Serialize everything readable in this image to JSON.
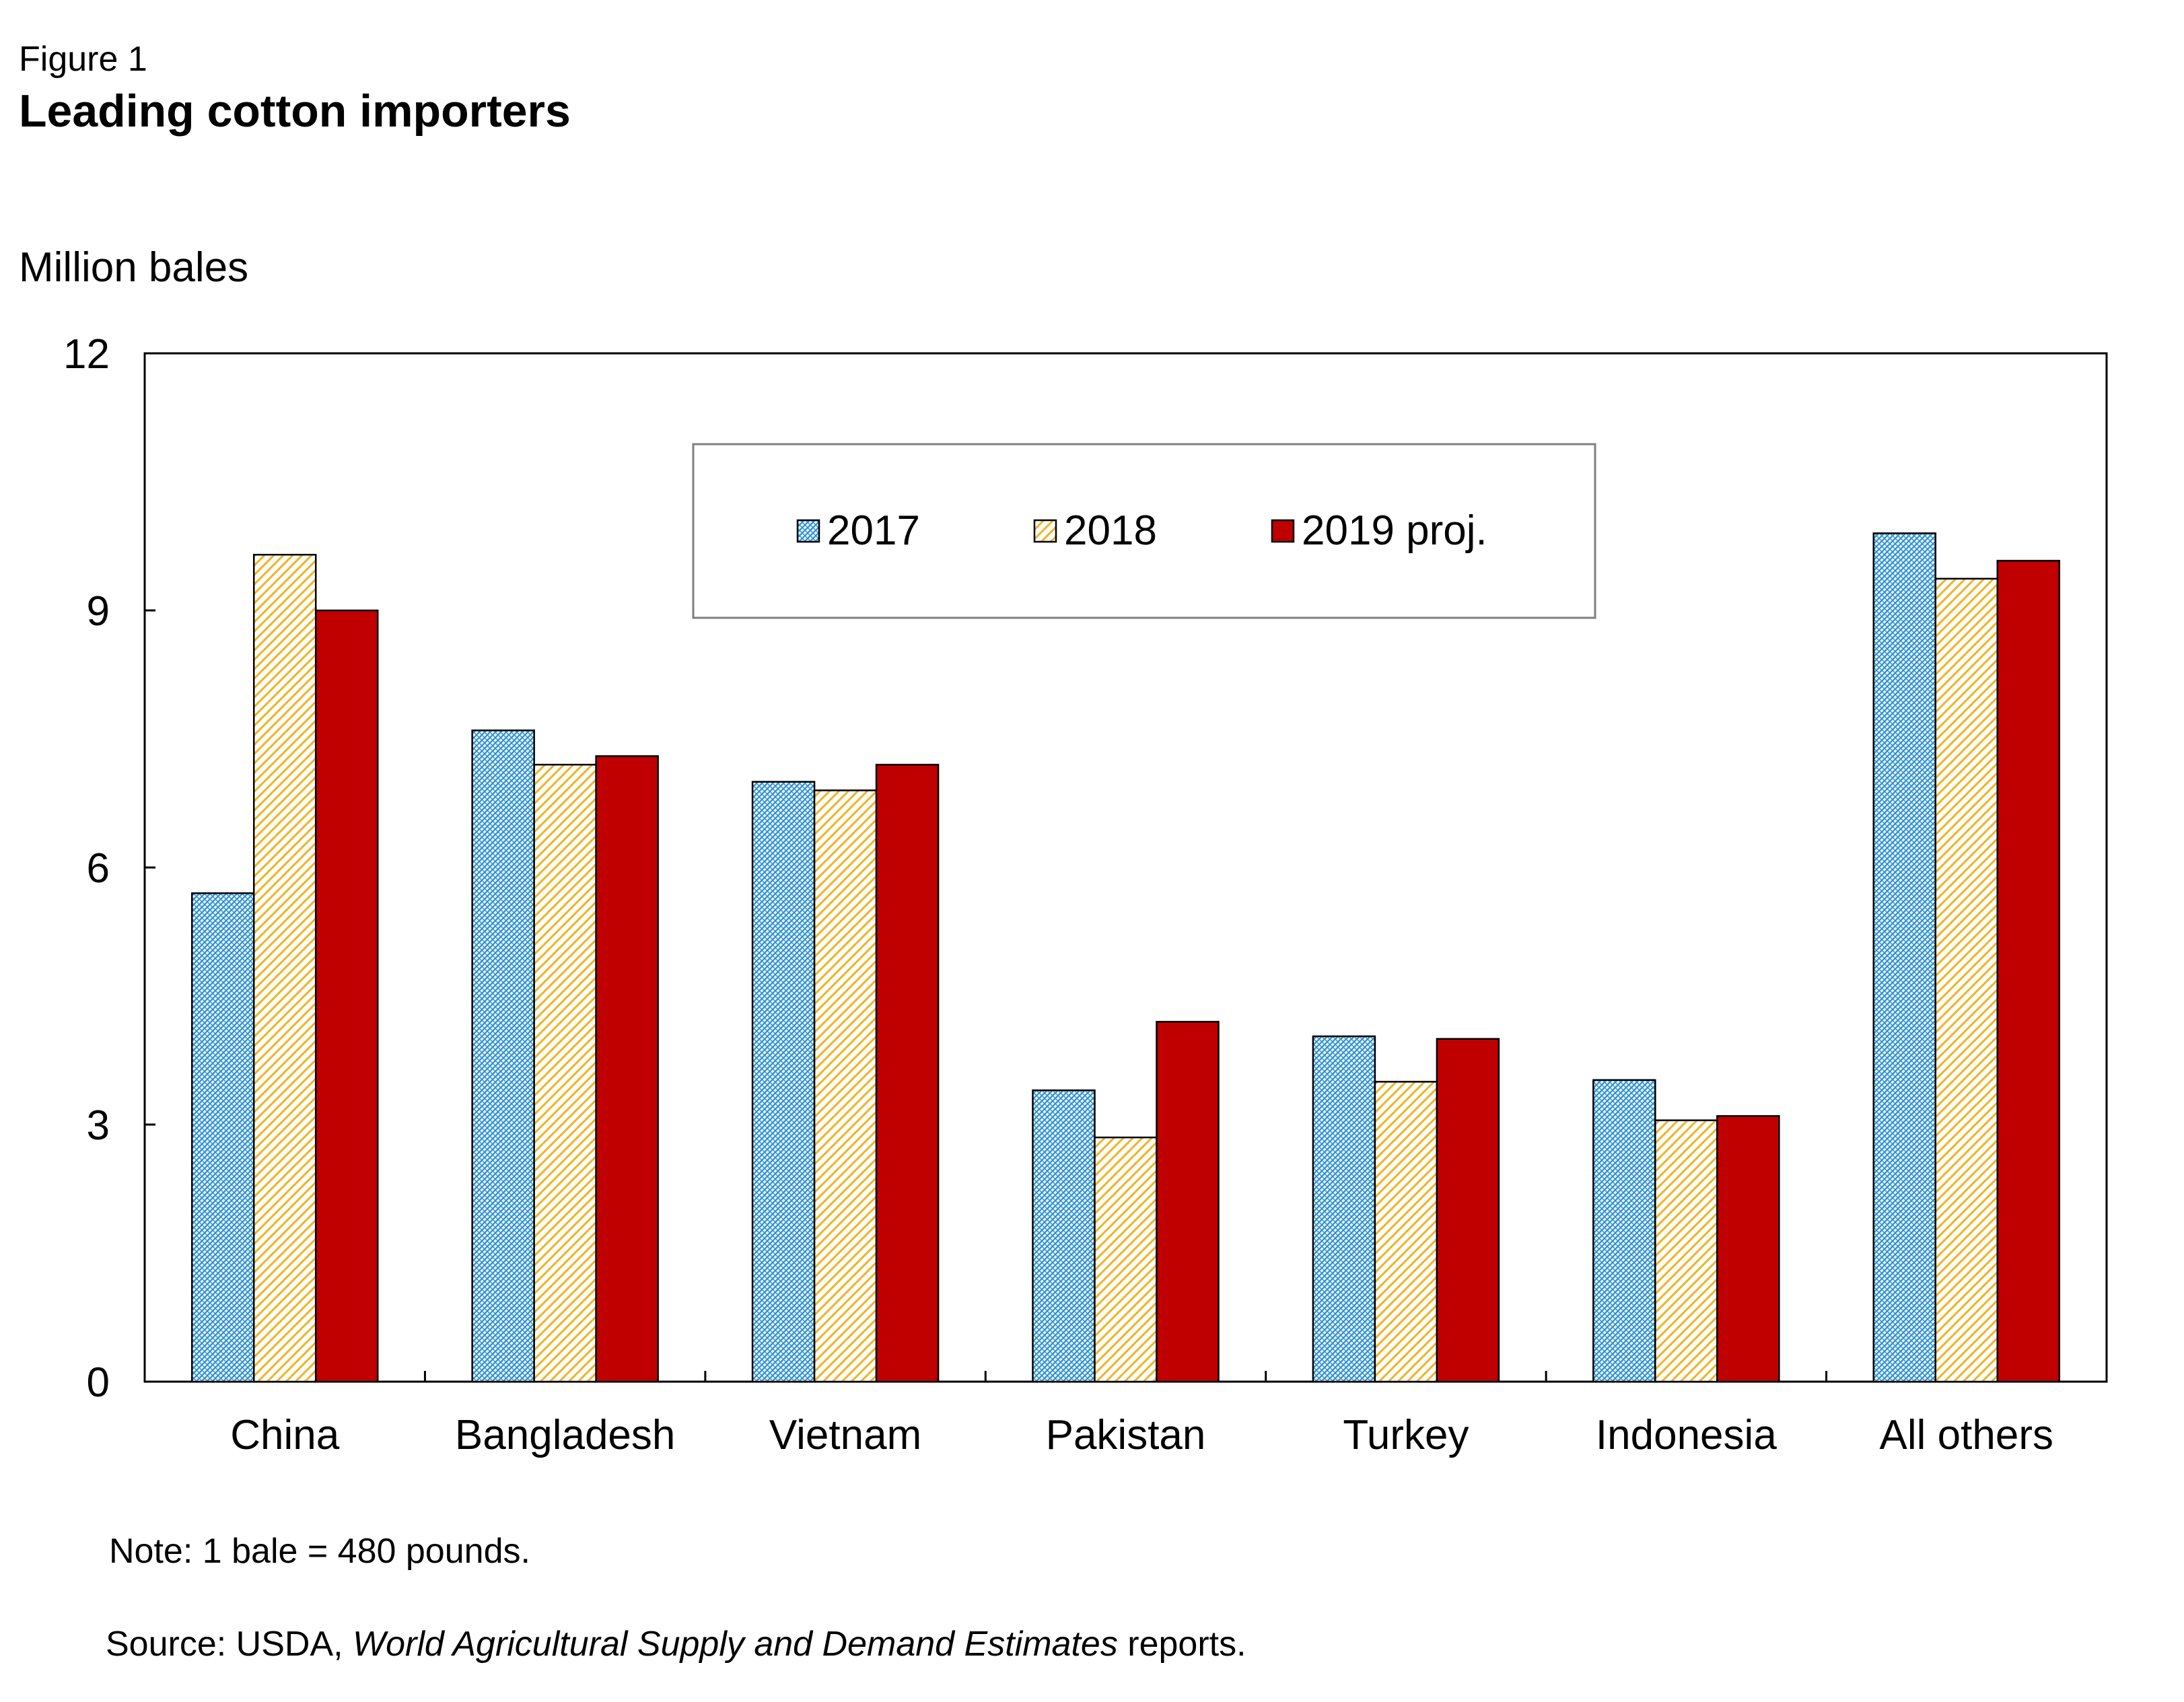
{
  "figure": {
    "label": "Figure 1",
    "title": "Leading cotton importers"
  },
  "note": "Note: 1 bale = 480 pounds.",
  "source": {
    "prefix": "Source:  USDA, ",
    "italic": "World Agricultural Supply and Demand Estimates",
    "suffix": " reports."
  },
  "colors": {
    "series_2017": "#2f8fd0",
    "series_2018": "#f0b323",
    "series_2019": "#c00000"
  },
  "chart_data": {
    "type": "bar",
    "title": "Leading cotton importers",
    "xlabel": "",
    "ylabel": "Million bales",
    "ylim": [
      0,
      12
    ],
    "yticks": [
      "0",
      "3",
      "6",
      "9",
      "12"
    ],
    "grid": false,
    "legend_position": "top-center",
    "categories": [
      "China",
      "Bangladesh",
      "Vietnam",
      "Pakistan",
      "Turkey",
      "Indonesia",
      "All others"
    ],
    "series": [
      {
        "name": "2017",
        "pattern": "dense-hatch",
        "values": [
          5.7,
          7.6,
          7.0,
          3.4,
          4.03,
          3.52,
          9.9
        ]
      },
      {
        "name": "2018",
        "pattern": "diagonal-hatch",
        "values": [
          9.65,
          7.2,
          6.9,
          2.85,
          3.5,
          3.05,
          9.37
        ]
      },
      {
        "name": "2019 proj.",
        "pattern": "solid",
        "values": [
          9.0,
          7.3,
          7.2,
          4.2,
          4.0,
          3.1,
          9.58
        ]
      }
    ]
  }
}
